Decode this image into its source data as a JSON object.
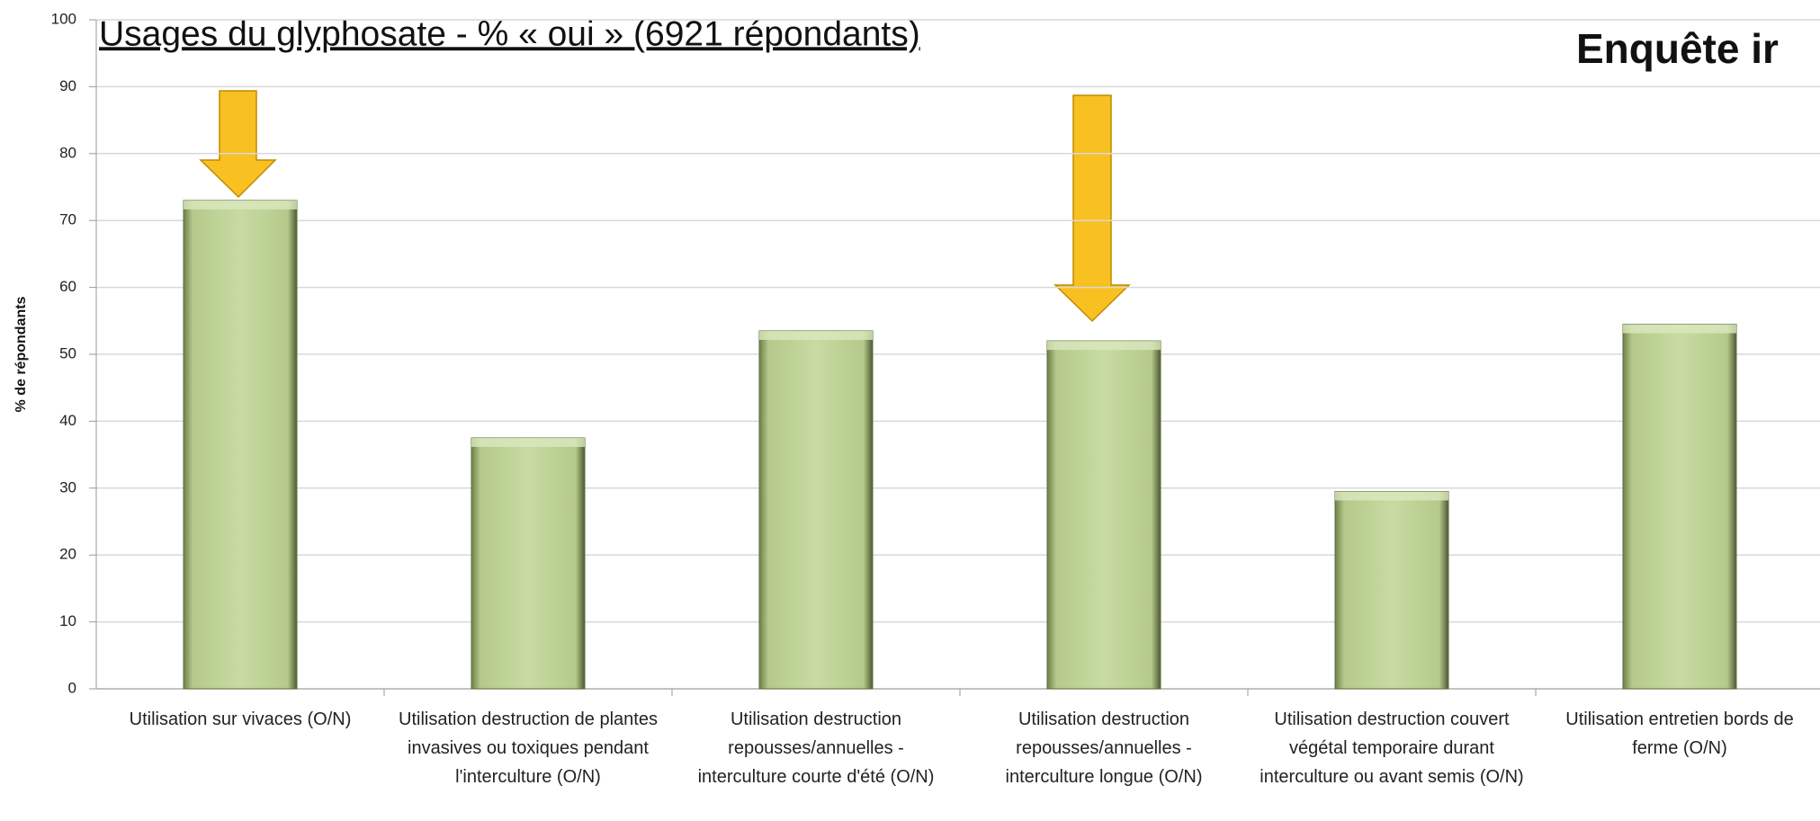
{
  "chart_data": {
    "type": "bar",
    "title": "Usages du glyphosate - % « oui » (6921 répondants)",
    "subtitle": "Enquête ir",
    "y_label": "% de répondants",
    "categories": [
      "Utilisation sur vivaces (O/N)",
      "Utilisation destruction de plantes invasives ou toxiques pendant l'interculture (O/N)",
      "Utilisation destruction repousses/annuelles - interculture courte d'été (O/N)",
      "Utilisation destruction repousses/annuelles - interculture longue (O/N)",
      "Utilisation destruction couvert végétal temporaire durant interculture ou avant semis (O/N)",
      "Utilisation entretien bords de ferme (O/N)"
    ],
    "values": [
      73,
      37.5,
      53.5,
      52,
      29.5,
      54.5
    ],
    "color": "#c3d69b",
    "ylim": [
      0,
      100
    ],
    "yticks": [
      0,
      10,
      20,
      30,
      40,
      50,
      60,
      70,
      80,
      90,
      100
    ],
    "grid": true
  }
}
